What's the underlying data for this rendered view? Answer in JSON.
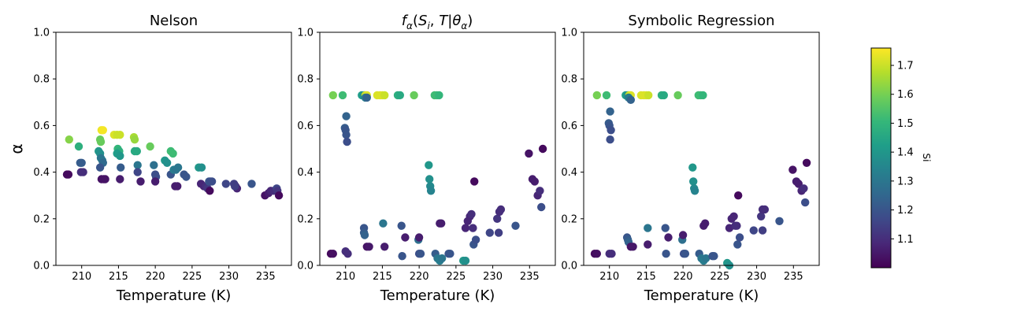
{
  "chart_data": [
    {
      "type": "scatter",
      "title": "Nelson",
      "xlabel": "Temperature (K)",
      "ylabel": "α",
      "xlim": [
        206.5,
        238.5
      ],
      "ylim": [
        0,
        1
      ],
      "xticks": [
        210,
        215,
        220,
        225,
        230,
        235
      ],
      "yticks": [
        0.0,
        0.2,
        0.4,
        0.6,
        0.8,
        1.0
      ],
      "points": [
        [
          208.0,
          0.39,
          1.02
        ],
        [
          208.2,
          0.39,
          1.02
        ],
        [
          208.3,
          0.54,
          1.62
        ],
        [
          209.6,
          0.51,
          1.48
        ],
        [
          209.8,
          0.44,
          1.22
        ],
        [
          210.0,
          0.44,
          1.22
        ],
        [
          209.9,
          0.4,
          1.1
        ],
        [
          210.2,
          0.4,
          1.1
        ],
        [
          212.3,
          0.49,
          1.4
        ],
        [
          212.5,
          0.48,
          1.38
        ],
        [
          212.5,
          0.54,
          1.58
        ],
        [
          212.6,
          0.53,
          1.58
        ],
        [
          212.7,
          0.58,
          1.74
        ],
        [
          212.9,
          0.58,
          1.75
        ],
        [
          212.6,
          0.46,
          1.3
        ],
        [
          212.8,
          0.45,
          1.3
        ],
        [
          212.9,
          0.44,
          1.26
        ],
        [
          212.5,
          0.42,
          1.2
        ],
        [
          212.7,
          0.37,
          1.04
        ],
        [
          213.0,
          0.37,
          1.04
        ],
        [
          213.2,
          0.37,
          1.04
        ],
        [
          214.4,
          0.56,
          1.72
        ],
        [
          214.8,
          0.56,
          1.7
        ],
        [
          215.2,
          0.56,
          1.7
        ],
        [
          214.9,
          0.5,
          1.5
        ],
        [
          215.1,
          0.49,
          1.48
        ],
        [
          214.8,
          0.48,
          1.42
        ],
        [
          215.2,
          0.47,
          1.4
        ],
        [
          215.3,
          0.42,
          1.22
        ],
        [
          215.2,
          0.37,
          1.06
        ],
        [
          217.1,
          0.55,
          1.66
        ],
        [
          217.2,
          0.54,
          1.64
        ],
        [
          217.2,
          0.49,
          1.46
        ],
        [
          217.5,
          0.49,
          1.46
        ],
        [
          217.6,
          0.43,
          1.3
        ],
        [
          217.6,
          0.4,
          1.16
        ],
        [
          218.0,
          0.36,
          1.06
        ],
        [
          219.3,
          0.51,
          1.58
        ],
        [
          219.8,
          0.43,
          1.28
        ],
        [
          220.0,
          0.39,
          1.18
        ],
        [
          220.1,
          0.38,
          1.18
        ],
        [
          220.0,
          0.36,
          1.06
        ],
        [
          221.3,
          0.45,
          1.4
        ],
        [
          221.6,
          0.44,
          1.38
        ],
        [
          222.1,
          0.49,
          1.52
        ],
        [
          222.4,
          0.48,
          1.52
        ],
        [
          222.1,
          0.39,
          1.2
        ],
        [
          222.5,
          0.41,
          1.32
        ],
        [
          222.8,
          0.41,
          1.3
        ],
        [
          223.1,
          0.42,
          1.3
        ],
        [
          222.7,
          0.34,
          1.06
        ],
        [
          223.0,
          0.34,
          1.06
        ],
        [
          223.9,
          0.39,
          1.2
        ],
        [
          224.2,
          0.38,
          1.2
        ],
        [
          225.9,
          0.42,
          1.4
        ],
        [
          226.3,
          0.42,
          1.38
        ],
        [
          226.2,
          0.35,
          1.08
        ],
        [
          226.6,
          0.34,
          1.08
        ],
        [
          226.9,
          0.34,
          1.1
        ],
        [
          227.1,
          0.33,
          1.12
        ],
        [
          227.3,
          0.36,
          1.2
        ],
        [
          227.5,
          0.36,
          1.18
        ],
        [
          227.7,
          0.36,
          1.18
        ],
        [
          227.4,
          0.32,
          1.02
        ],
        [
          229.6,
          0.35,
          1.16
        ],
        [
          230.7,
          0.35,
          1.14
        ],
        [
          230.9,
          0.34,
          1.1
        ],
        [
          231.1,
          0.33,
          1.08
        ],
        [
          230.8,
          0.34,
          1.14
        ],
        [
          233.1,
          0.35,
          1.2
        ],
        [
          234.9,
          0.3,
          1.04
        ],
        [
          235.4,
          0.31,
          1.06
        ],
        [
          235.7,
          0.32,
          1.08
        ],
        [
          236.1,
          0.32,
          1.1
        ],
        [
          236.5,
          0.33,
          1.16
        ],
        [
          236.6,
          0.32,
          1.12
        ],
        [
          236.8,
          0.3,
          1.02
        ]
      ]
    },
    {
      "type": "scatter",
      "title": "fα(Si, T|θα)",
      "xlabel": "Temperature (K)",
      "ylabel": "",
      "xlim": [
        206.5,
        238.5
      ],
      "ylim": [
        0,
        1
      ],
      "xticks": [
        210,
        215,
        220,
        225,
        230,
        235
      ],
      "yticks": [
        0.0,
        0.2,
        0.4,
        0.6,
        0.8,
        1.0
      ],
      "points": [
        [
          208.0,
          0.05,
          1.02
        ],
        [
          208.3,
          0.05,
          1.03
        ],
        [
          208.3,
          0.73,
          1.6
        ],
        [
          209.6,
          0.73,
          1.52
        ],
        [
          209.9,
          0.59,
          1.22
        ],
        [
          210.0,
          0.58,
          1.2
        ],
        [
          210.1,
          0.56,
          1.2
        ],
        [
          210.2,
          0.53,
          1.18
        ],
        [
          210.1,
          0.64,
          1.24
        ],
        [
          210.0,
          0.06,
          1.1
        ],
        [
          210.3,
          0.05,
          1.1
        ],
        [
          212.2,
          0.73,
          1.42
        ],
        [
          212.5,
          0.73,
          1.38
        ],
        [
          212.7,
          0.73,
          1.7
        ],
        [
          212.9,
          0.73,
          1.72
        ],
        [
          212.7,
          0.72,
          1.32
        ],
        [
          212.9,
          0.72,
          1.24
        ],
        [
          212.5,
          0.16,
          1.2
        ],
        [
          212.5,
          0.14,
          1.22
        ],
        [
          212.6,
          0.13,
          1.24
        ],
        [
          212.9,
          0.08,
          1.04
        ],
        [
          213.2,
          0.08,
          1.05
        ],
        [
          214.3,
          0.73,
          1.72
        ],
        [
          214.7,
          0.73,
          1.72
        ],
        [
          215.0,
          0.73,
          1.72
        ],
        [
          215.3,
          0.73,
          1.7
        ],
        [
          215.1,
          0.18,
          1.3
        ],
        [
          215.3,
          0.08,
          1.06
        ],
        [
          217.1,
          0.73,
          1.48
        ],
        [
          217.4,
          0.73,
          1.46
        ],
        [
          217.6,
          0.17,
          1.2
        ],
        [
          217.7,
          0.04,
          1.2
        ],
        [
          218.1,
          0.12,
          1.06
        ],
        [
          219.3,
          0.73,
          1.58
        ],
        [
          219.9,
          0.11,
          1.28
        ],
        [
          220.0,
          0.12,
          1.06
        ],
        [
          220.0,
          0.05,
          1.18
        ],
        [
          220.2,
          0.05,
          1.2
        ],
        [
          221.3,
          0.43,
          1.4
        ],
        [
          221.4,
          0.37,
          1.38
        ],
        [
          221.5,
          0.34,
          1.36
        ],
        [
          221.6,
          0.32,
          1.34
        ],
        [
          222.1,
          0.73,
          1.52
        ],
        [
          222.4,
          0.73,
          1.52
        ],
        [
          222.7,
          0.73,
          1.5
        ],
        [
          222.2,
          0.05,
          1.22
        ],
        [
          222.5,
          0.03,
          1.3
        ],
        [
          222.8,
          0.02,
          1.32
        ],
        [
          223.1,
          0.03,
          1.3
        ],
        [
          222.8,
          0.18,
          1.06
        ],
        [
          223.0,
          0.18,
          1.06
        ],
        [
          224.0,
          0.05,
          1.2
        ],
        [
          224.2,
          0.05,
          1.2
        ],
        [
          226.0,
          0.02,
          1.4
        ],
        [
          226.3,
          0.02,
          1.38
        ],
        [
          226.3,
          0.16,
          1.08
        ],
        [
          226.6,
          0.19,
          1.08
        ],
        [
          226.9,
          0.21,
          1.08
        ],
        [
          227.1,
          0.22,
          1.1
        ],
        [
          227.3,
          0.16,
          1.1
        ],
        [
          227.4,
          0.09,
          1.2
        ],
        [
          227.7,
          0.11,
          1.18
        ],
        [
          227.5,
          0.36,
          1.02
        ],
        [
          229.6,
          0.14,
          1.16
        ],
        [
          230.6,
          0.2,
          1.12
        ],
        [
          230.9,
          0.23,
          1.1
        ],
        [
          231.1,
          0.24,
          1.1
        ],
        [
          230.8,
          0.14,
          1.14
        ],
        [
          233.1,
          0.17,
          1.2
        ],
        [
          234.9,
          0.48,
          1.04
        ],
        [
          235.4,
          0.37,
          1.06
        ],
        [
          235.7,
          0.36,
          1.06
        ],
        [
          236.1,
          0.3,
          1.08
        ],
        [
          236.4,
          0.32,
          1.1
        ],
        [
          236.6,
          0.25,
          1.18
        ],
        [
          236.8,
          0.5,
          1.02
        ]
      ]
    },
    {
      "type": "scatter",
      "title": "Symbolic Regression",
      "xlabel": "Temperature (K)",
      "ylabel": "",
      "xlim": [
        206.5,
        238.5
      ],
      "ylim": [
        0,
        1
      ],
      "xticks": [
        210,
        215,
        220,
        225,
        230,
        235
      ],
      "yticks": [
        0.0,
        0.2,
        0.4,
        0.6,
        0.8,
        1.0
      ],
      "points": [
        [
          208.0,
          0.05,
          1.02
        ],
        [
          208.3,
          0.05,
          1.03
        ],
        [
          208.3,
          0.73,
          1.6
        ],
        [
          209.6,
          0.73,
          1.52
        ],
        [
          209.9,
          0.61,
          1.22
        ],
        [
          210.0,
          0.6,
          1.2
        ],
        [
          210.2,
          0.58,
          1.18
        ],
        [
          210.1,
          0.54,
          1.18
        ],
        [
          210.1,
          0.66,
          1.24
        ],
        [
          210.0,
          0.05,
          1.1
        ],
        [
          210.3,
          0.05,
          1.1
        ],
        [
          212.2,
          0.73,
          1.42
        ],
        [
          212.5,
          0.73,
          1.38
        ],
        [
          212.7,
          0.73,
          1.7
        ],
        [
          212.9,
          0.73,
          1.72
        ],
        [
          212.6,
          0.72,
          1.32
        ],
        [
          212.9,
          0.71,
          1.24
        ],
        [
          212.4,
          0.12,
          1.2
        ],
        [
          212.5,
          0.11,
          1.22
        ],
        [
          212.6,
          0.1,
          1.24
        ],
        [
          212.9,
          0.08,
          1.04
        ],
        [
          213.2,
          0.08,
          1.05
        ],
        [
          214.3,
          0.73,
          1.72
        ],
        [
          214.7,
          0.73,
          1.72
        ],
        [
          215.0,
          0.73,
          1.72
        ],
        [
          215.3,
          0.73,
          1.7
        ],
        [
          215.2,
          0.16,
          1.3
        ],
        [
          215.2,
          0.09,
          1.06
        ],
        [
          217.1,
          0.73,
          1.48
        ],
        [
          217.4,
          0.73,
          1.46
        ],
        [
          217.6,
          0.16,
          1.2
        ],
        [
          217.7,
          0.05,
          1.2
        ],
        [
          218.0,
          0.12,
          1.06
        ],
        [
          219.3,
          0.73,
          1.58
        ],
        [
          219.9,
          0.11,
          1.28
        ],
        [
          220.0,
          0.13,
          1.06
        ],
        [
          220.1,
          0.05,
          1.18
        ],
        [
          220.3,
          0.05,
          1.2
        ],
        [
          221.3,
          0.42,
          1.4
        ],
        [
          221.4,
          0.36,
          1.38
        ],
        [
          221.5,
          0.33,
          1.36
        ],
        [
          221.6,
          0.32,
          1.34
        ],
        [
          222.1,
          0.73,
          1.52
        ],
        [
          222.4,
          0.73,
          1.52
        ],
        [
          222.7,
          0.73,
          1.5
        ],
        [
          222.2,
          0.05,
          1.22
        ],
        [
          222.5,
          0.03,
          1.3
        ],
        [
          222.8,
          0.02,
          1.32
        ],
        [
          223.1,
          0.03,
          1.3
        ],
        [
          222.8,
          0.17,
          1.06
        ],
        [
          223.0,
          0.18,
          1.06
        ],
        [
          224.0,
          0.04,
          1.2
        ],
        [
          224.2,
          0.04,
          1.2
        ],
        [
          226.0,
          0.01,
          1.4
        ],
        [
          226.3,
          0.0,
          1.38
        ],
        [
          226.3,
          0.16,
          1.08
        ],
        [
          226.6,
          0.2,
          1.08
        ],
        [
          226.9,
          0.21,
          1.08
        ],
        [
          227.1,
          0.17,
          1.1
        ],
        [
          227.3,
          0.17,
          1.1
        ],
        [
          227.4,
          0.09,
          1.2
        ],
        [
          227.7,
          0.12,
          1.18
        ],
        [
          227.5,
          0.3,
          1.02
        ],
        [
          229.6,
          0.15,
          1.16
        ],
        [
          230.6,
          0.21,
          1.12
        ],
        [
          230.8,
          0.24,
          1.1
        ],
        [
          231.1,
          0.24,
          1.1
        ],
        [
          230.8,
          0.15,
          1.14
        ],
        [
          233.1,
          0.19,
          1.2
        ],
        [
          234.9,
          0.41,
          1.04
        ],
        [
          235.4,
          0.36,
          1.06
        ],
        [
          235.7,
          0.35,
          1.06
        ],
        [
          236.1,
          0.32,
          1.08
        ],
        [
          236.4,
          0.33,
          1.1
        ],
        [
          236.6,
          0.27,
          1.18
        ],
        [
          236.8,
          0.44,
          1.02
        ]
      ]
    }
  ],
  "colorbar": {
    "label": "Si",
    "min": 1.0,
    "max": 1.76,
    "ticks": [
      1.1,
      1.2,
      1.3,
      1.4,
      1.5,
      1.6,
      1.7
    ],
    "colormap": "viridis"
  },
  "colors": {
    "viridis": [
      "#440154",
      "#482878",
      "#3e4a89",
      "#31688e",
      "#26828e",
      "#1f9e89",
      "#35b779",
      "#6ece58",
      "#b5de2b",
      "#fde725"
    ]
  }
}
